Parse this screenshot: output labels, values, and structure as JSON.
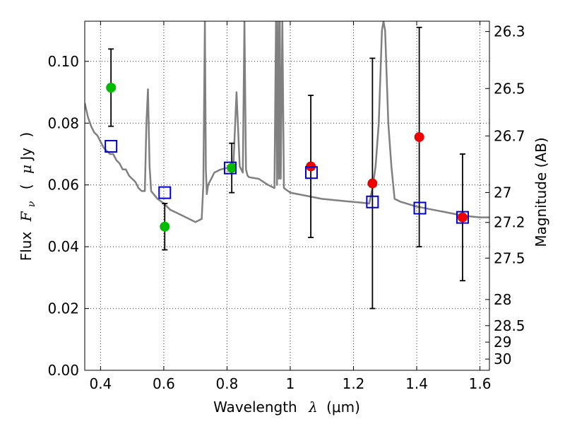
{
  "chart_data": {
    "type": "scatter",
    "title": "",
    "xlabel": "Wavelength",
    "xlabel_symbol": "λ",
    "xlabel_unit": "(μm)",
    "ylabel": "Flux",
    "ylabel_symbol": "F",
    "ylabel_symbol_sub": "ν",
    "ylabel_paren_open": "(",
    "ylabel_unit_mu": "μ",
    "ylabel_unit": "Jy",
    "ylabel_paren_close": ")",
    "y2label": "Magnitude (AB)",
    "xlim": [
      0.35,
      1.63
    ],
    "ylim": [
      0.0,
      0.113
    ],
    "grid": true,
    "x_ticks": [
      0.4,
      0.6,
      0.8,
      1.0,
      1.2,
      1.4,
      1.6
    ],
    "x_tick_labels": [
      "0.4",
      "0.6",
      "0.8",
      "1",
      "1.2",
      "1.4",
      "1.6"
    ],
    "y_ticks": [
      0.0,
      0.02,
      0.04,
      0.06,
      0.08,
      0.1
    ],
    "y_tick_labels": [
      "0.00",
      "0.02",
      "0.04",
      "0.06",
      "0.08",
      "0.10"
    ],
    "y2_ticks": [
      {
        "mag": 26.3,
        "label": "26.3"
      },
      {
        "mag": 26.5,
        "label": "26.5"
      },
      {
        "mag": 26.7,
        "label": "26.7"
      },
      {
        "mag": 27.0,
        "label": "27"
      },
      {
        "mag": 27.2,
        "label": "27.2"
      },
      {
        "mag": 27.5,
        "label": "27.5"
      },
      {
        "mag": 28.0,
        "label": "28"
      },
      {
        "mag": 28.5,
        "label": "28.5"
      },
      {
        "mag": 29.0,
        "label": "29"
      },
      {
        "mag": 30.0,
        "label": "30"
      }
    ],
    "series": [
      {
        "kind": "line",
        "color": "#808080",
        "x": [
          0.35,
          0.36,
          0.37,
          0.38,
          0.39,
          0.4,
          0.41,
          0.42,
          0.43,
          0.44,
          0.45,
          0.46,
          0.47,
          0.48,
          0.49,
          0.5,
          0.51,
          0.52,
          0.53,
          0.54,
          0.545,
          0.55,
          0.555,
          0.56,
          0.58,
          0.6,
          0.62,
          0.64,
          0.66,
          0.68,
          0.7,
          0.72,
          0.725,
          0.73,
          0.733,
          0.736,
          0.74,
          0.75,
          0.76,
          0.78,
          0.8,
          0.82,
          0.83,
          0.84,
          0.85,
          0.855,
          0.86,
          0.865,
          0.87,
          0.9,
          0.93,
          0.95,
          0.955,
          0.958,
          0.961,
          0.964,
          0.967,
          0.97,
          0.975,
          0.98,
          1.0,
          1.05,
          1.1,
          1.15,
          1.2,
          1.25,
          1.26,
          1.27,
          1.28,
          1.29,
          1.295,
          1.3,
          1.31,
          1.32,
          1.33,
          1.35,
          1.4,
          1.45,
          1.5,
          1.55,
          1.6,
          1.63
        ],
        "y": [
          0.0865,
          0.082,
          0.079,
          0.077,
          0.076,
          0.074,
          0.072,
          0.071,
          0.07,
          0.07,
          0.068,
          0.067,
          0.065,
          0.065,
          0.063,
          0.062,
          0.061,
          0.059,
          0.058,
          0.058,
          0.08,
          0.091,
          0.066,
          0.058,
          0.0555,
          0.054,
          0.052,
          0.051,
          0.05,
          0.049,
          0.048,
          0.049,
          0.06,
          0.113,
          0.065,
          0.057,
          0.06,
          0.062,
          0.064,
          0.065,
          0.0655,
          0.066,
          0.09,
          0.066,
          0.064,
          0.113,
          0.065,
          0.063,
          0.0625,
          0.062,
          0.06,
          0.059,
          0.113,
          0.06,
          0.113,
          0.062,
          0.113,
          0.062,
          0.113,
          0.059,
          0.0575,
          0.0565,
          0.0555,
          0.055,
          0.0545,
          0.054,
          0.059,
          0.066,
          0.08,
          0.11,
          0.113,
          0.11,
          0.08,
          0.066,
          0.0555,
          0.0545,
          0.053,
          0.052,
          0.051,
          0.05,
          0.0495,
          0.0495
        ]
      },
      {
        "kind": "errorbar",
        "color": "#000000",
        "x": [
          0.433,
          0.603,
          0.815,
          1.065,
          1.26,
          1.408,
          1.545
        ],
        "y": [
          0.0915,
          0.0465,
          0.0655,
          0.066,
          0.0605,
          0.0755,
          0.0495
        ],
        "yerr": [
          0.0125,
          0.0075,
          0.008,
          0.023,
          0.0405,
          0.0355,
          0.0205
        ]
      },
      {
        "kind": "points",
        "marker": "circle",
        "color": "#00bb00",
        "x": [
          0.433,
          0.603,
          0.815
        ],
        "y": [
          0.0915,
          0.0465,
          0.0655
        ]
      },
      {
        "kind": "points",
        "marker": "circle",
        "color": "#ee0000",
        "x": [
          1.065,
          1.26,
          1.408,
          1.545
        ],
        "y": [
          0.066,
          0.0605,
          0.0755,
          0.0495
        ]
      },
      {
        "kind": "points",
        "marker": "square",
        "color": "#0000cc",
        "x": [
          0.433,
          0.603,
          0.81,
          1.067,
          1.26,
          1.41,
          1.545
        ],
        "y": [
          0.0725,
          0.0575,
          0.0655,
          0.064,
          0.0545,
          0.0525,
          0.0495
        ]
      }
    ]
  }
}
